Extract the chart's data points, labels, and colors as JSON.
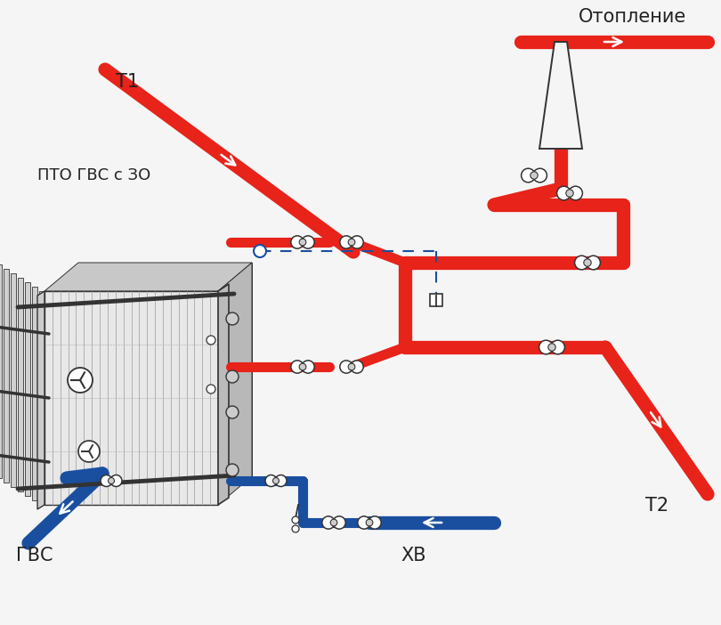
{
  "bg_color": "#f5f5f5",
  "red_color": "#e8231a",
  "blue_color": "#1a4fa0",
  "dark_color": "#333333",
  "gray_color": "#888888",
  "dashed_color": "#3355cc",
  "text_color": "#222222",
  "label_t1": "Т1",
  "label_t2": "Т2",
  "label_gvs": "ГВС",
  "label_xv": "ХВ",
  "label_oto": "Отопление",
  "label_pto": "ПТО ГВС с ЗО",
  "pipe_lw": 11,
  "valve_color": "#ffffff"
}
